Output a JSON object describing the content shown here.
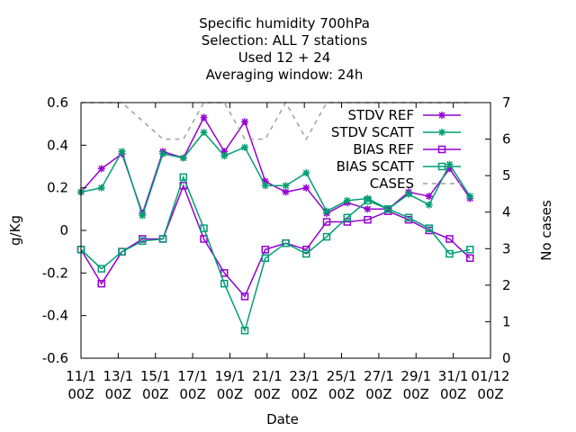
{
  "chart_data": {
    "type": "line",
    "title_lines": [
      "Specific humidity 700hPa",
      "Selection: ALL      7 stations",
      "Used  12 + 24",
      "Averaging window: 24h"
    ],
    "xlabel": "Date",
    "ylabel": "g/Kg",
    "y2label": "No cases",
    "ylim": [
      -0.6,
      0.6
    ],
    "y2lim": [
      0,
      7
    ],
    "y_ticks": [
      "-0.6",
      "-0.4",
      "-0.2",
      "0",
      "0.2",
      "0.4",
      "0.6"
    ],
    "y2_ticks": [
      "0",
      "1",
      "2",
      "3",
      "4",
      "5",
      "6",
      "7"
    ],
    "x_ticks": [
      {
        "date": "11/1",
        "hour": "00Z"
      },
      {
        "date": "13/1",
        "hour": "00Z"
      },
      {
        "date": "15/1",
        "hour": "00Z"
      },
      {
        "date": "17/1",
        "hour": "00Z"
      },
      {
        "date": "19/1",
        "hour": "00Z"
      },
      {
        "date": "21/1",
        "hour": "00Z"
      },
      {
        "date": "23/1",
        "hour": "00Z"
      },
      {
        "date": "25/1",
        "hour": "00Z"
      },
      {
        "date": "27/1",
        "hour": "00Z"
      },
      {
        "date": "29/1",
        "hour": "00Z"
      },
      {
        "date": "31/1",
        "hour": "00Z"
      },
      {
        "date": "01/12",
        "hour": "00Z"
      }
    ],
    "x_days": [
      0,
      1,
      2,
      3,
      4,
      5,
      6,
      7,
      8,
      9,
      10,
      11,
      12,
      13,
      14,
      15,
      16,
      17,
      18,
      19,
      20
    ],
    "x_range_days": [
      0,
      20
    ],
    "legend_position": "top-right",
    "grid": false,
    "series": [
      {
        "name": "STDV REF",
        "axis": "y",
        "color": "#9400d3",
        "marker": "star",
        "values": [
          0.18,
          0.29,
          0.36,
          0.08,
          0.37,
          0.34,
          0.53,
          0.37,
          0.51,
          0.23,
          0.18,
          0.2,
          0.08,
          0.13,
          0.1,
          0.1,
          0.18,
          0.16,
          0.29,
          0.15
        ]
      },
      {
        "name": "STDV SCATT",
        "axis": "y",
        "color": "#009e73",
        "marker": "star",
        "values": [
          0.18,
          0.2,
          0.37,
          0.07,
          0.36,
          0.34,
          0.46,
          0.35,
          0.39,
          0.21,
          0.21,
          0.27,
          0.09,
          0.14,
          0.15,
          0.1,
          0.17,
          0.12,
          0.31,
          0.16
        ]
      },
      {
        "name": "BIAS REF",
        "axis": "y",
        "color": "#9400d3",
        "marker": "square",
        "values": [
          -0.09,
          -0.25,
          -0.1,
          -0.04,
          -0.04,
          0.21,
          -0.04,
          -0.2,
          -0.31,
          -0.09,
          -0.06,
          -0.09,
          0.04,
          0.04,
          0.05,
          0.09,
          0.05,
          0.0,
          -0.04,
          -0.13
        ]
      },
      {
        "name": "BIAS SCATT",
        "axis": "y",
        "color": "#009e73",
        "marker": "square",
        "values": [
          -0.09,
          -0.18,
          -0.1,
          -0.05,
          -0.04,
          0.25,
          0.01,
          -0.25,
          -0.47,
          -0.13,
          -0.06,
          -0.11,
          -0.03,
          0.06,
          0.14,
          0.1,
          0.06,
          0.01,
          -0.11,
          -0.09
        ]
      },
      {
        "name": "CASES",
        "axis": "y2",
        "color": "#a0a0a0",
        "marker": "none",
        "dash": true,
        "values": [
          7,
          7,
          7,
          6.5,
          6,
          6,
          7,
          7,
          6,
          6,
          7,
          6,
          7,
          7,
          7,
          7,
          7,
          7,
          7,
          7
        ]
      }
    ]
  }
}
